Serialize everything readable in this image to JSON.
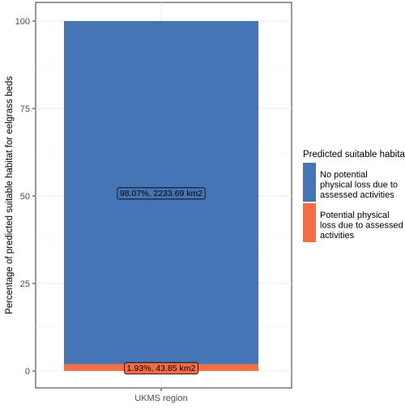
{
  "chart_data": {
    "type": "bar",
    "stacked": true,
    "categories": [
      "UKMS region"
    ],
    "series": [
      {
        "name": "Potential physical loss due to assessed activities",
        "name_lines": [
          "Potential physical",
          "loss due to assessed",
          "activities"
        ],
        "values": [
          1.93
        ],
        "label": "1.93%,   43.85 km2",
        "color": "#F46D43"
      },
      {
        "name": "No potential physical loss due to assessed activities",
        "name_lines": [
          "No potential",
          "physical loss due to",
          "assessed activities"
        ],
        "values": [
          98.07
        ],
        "label": "98.07%, 2233.69 km2",
        "color": "#4575B4"
      }
    ],
    "xlabel": "",
    "ylabel": "Percentage of predicted suitable habitat for eelgrass beds",
    "ylim": [
      0,
      100
    ],
    "yticks": [
      0,
      25,
      50,
      75,
      100
    ],
    "grid": true,
    "legend": {
      "title": "Predicted suitable habitat",
      "placement": "right"
    }
  }
}
